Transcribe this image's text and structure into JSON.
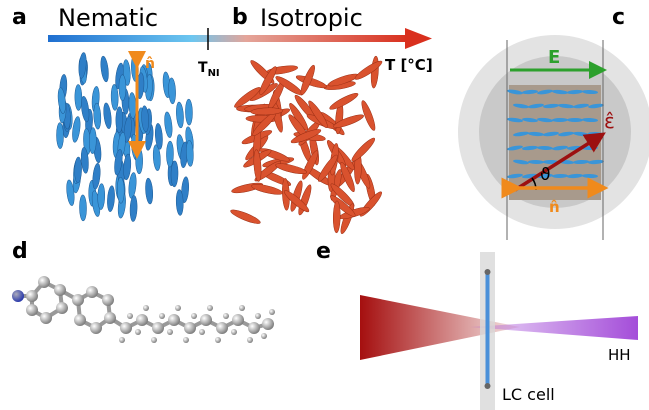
{
  "panels": {
    "a": {
      "label": "a",
      "phase": "Nematic",
      "director": "n̂",
      "transition": {
        "symbol": "T",
        "subscript": "NI"
      }
    },
    "b": {
      "label": "b",
      "phase": "Isotropic",
      "axis": "T [°C]"
    },
    "c": {
      "label": "c",
      "field": "E",
      "polarization": "ε̂",
      "angle": "ϑ",
      "director": "n̂"
    },
    "d": {
      "label": "d"
    },
    "e": {
      "label": "e",
      "output": "HH",
      "cell": "LC cell"
    }
  }
}
